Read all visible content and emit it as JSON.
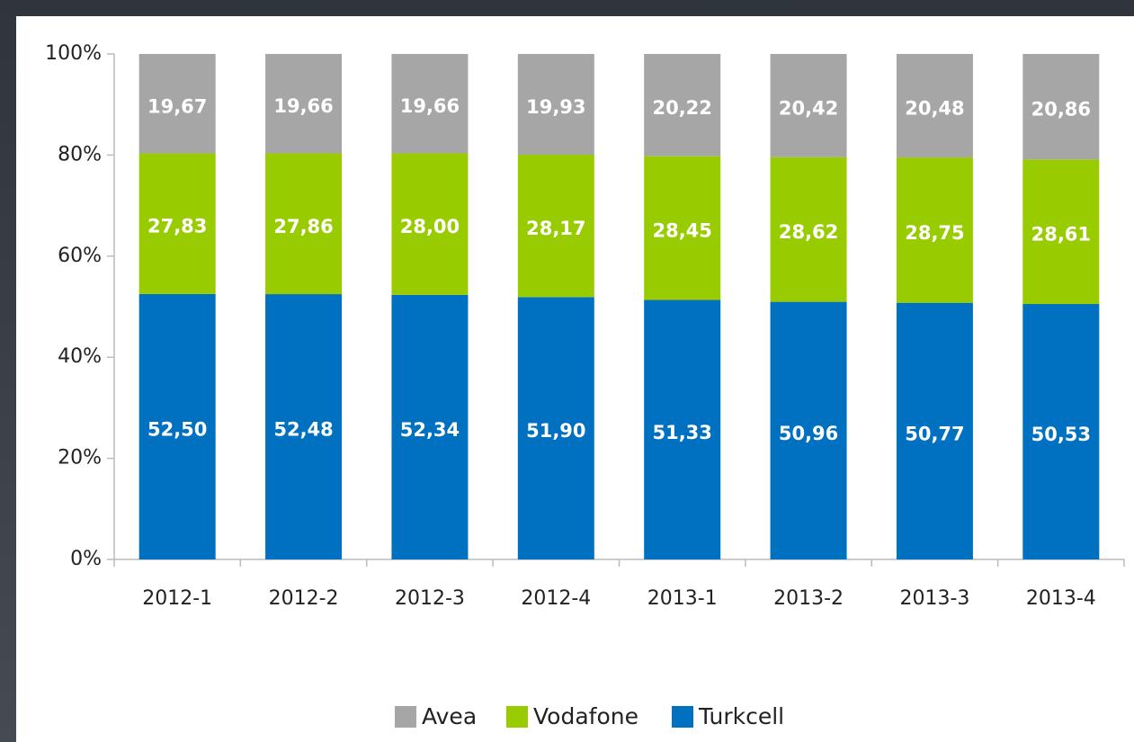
{
  "chart_data": {
    "type": "stacked_bar",
    "categories": [
      "2012-1",
      "2012-2",
      "2012-3",
      "2012-4",
      "2013-1",
      "2013-2",
      "2013-3",
      "2013-4"
    ],
    "series": [
      {
        "name": "Avea",
        "color": "#a6a6a6",
        "values": [
          19.67,
          19.66,
          19.66,
          19.93,
          20.22,
          20.42,
          20.48,
          20.86
        ],
        "value_labels": [
          "19,67",
          "19,66",
          "19,66",
          "19,93",
          "20,22",
          "20,42",
          "20,48",
          "20,86"
        ]
      },
      {
        "name": "Vodafone",
        "color": "#99cc00",
        "values": [
          27.83,
          27.86,
          28.0,
          28.17,
          28.45,
          28.62,
          28.75,
          28.61
        ],
        "value_labels": [
          "27,83",
          "27,86",
          "28,00",
          "28,17",
          "28,45",
          "28,62",
          "28,75",
          "28,61"
        ]
      },
      {
        "name": "Turkcell",
        "color": "#0070c0",
        "values": [
          52.5,
          52.48,
          52.34,
          51.9,
          51.33,
          50.96,
          50.77,
          50.53
        ],
        "value_labels": [
          "52,50",
          "52,48",
          "52,34",
          "51,90",
          "51,33",
          "50,96",
          "50,77",
          "50,53"
        ]
      }
    ],
    "ylim": [
      0,
      100
    ],
    "yticks": [
      {
        "value": 0,
        "label": "0%"
      },
      {
        "value": 20,
        "label": "20%"
      },
      {
        "value": 40,
        "label": "40%"
      },
      {
        "value": 60,
        "label": "60%"
      },
      {
        "value": 80,
        "label": "80%"
      },
      {
        "value": 100,
        "label": "100%"
      }
    ],
    "legend": "bottom"
  }
}
